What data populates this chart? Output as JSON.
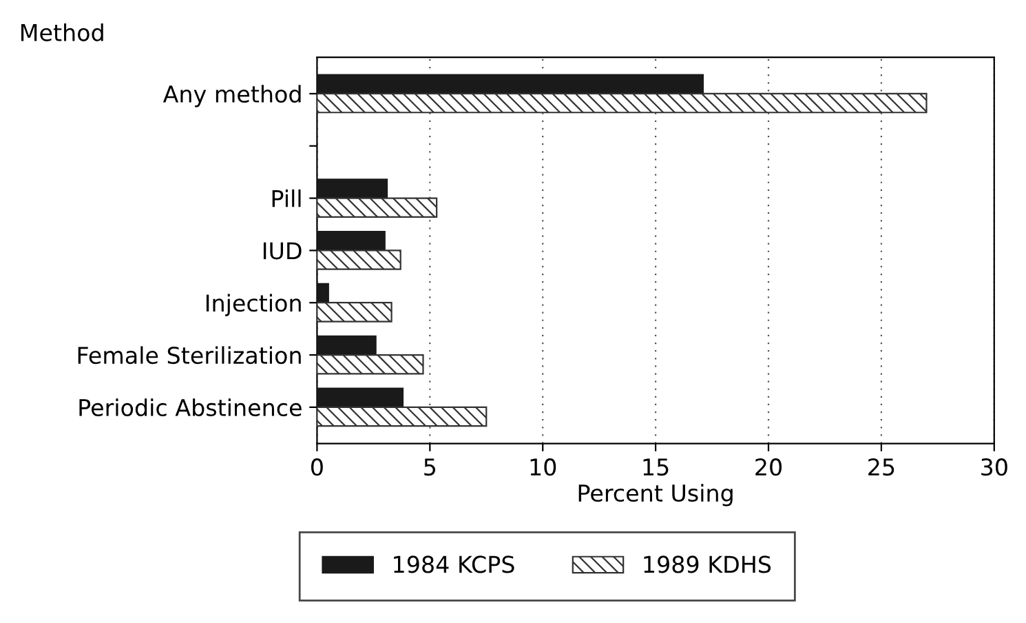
{
  "chart_data": {
    "type": "bar",
    "orientation": "horizontal",
    "ylabel": "Method",
    "xlabel": "Percent Using",
    "categories": [
      "Any method",
      null,
      "Pill",
      "IUD",
      "Injection",
      "Female Sterilization",
      "Periodic Abstinence"
    ],
    "series": [
      {
        "name": "1984 KCPS",
        "color": "#1a1a1a",
        "values": [
          17.1,
          null,
          3.1,
          3.0,
          0.5,
          2.6,
          3.8
        ]
      },
      {
        "name": "1989 KDHS",
        "color": "#333333",
        "values": [
          27.0,
          null,
          5.3,
          3.7,
          3.3,
          4.7,
          7.5
        ]
      }
    ],
    "xlim": [
      0,
      30
    ],
    "xticks": [
      0,
      5,
      10,
      15,
      20,
      25,
      30
    ],
    "grid": "x",
    "legend": "bottom"
  }
}
